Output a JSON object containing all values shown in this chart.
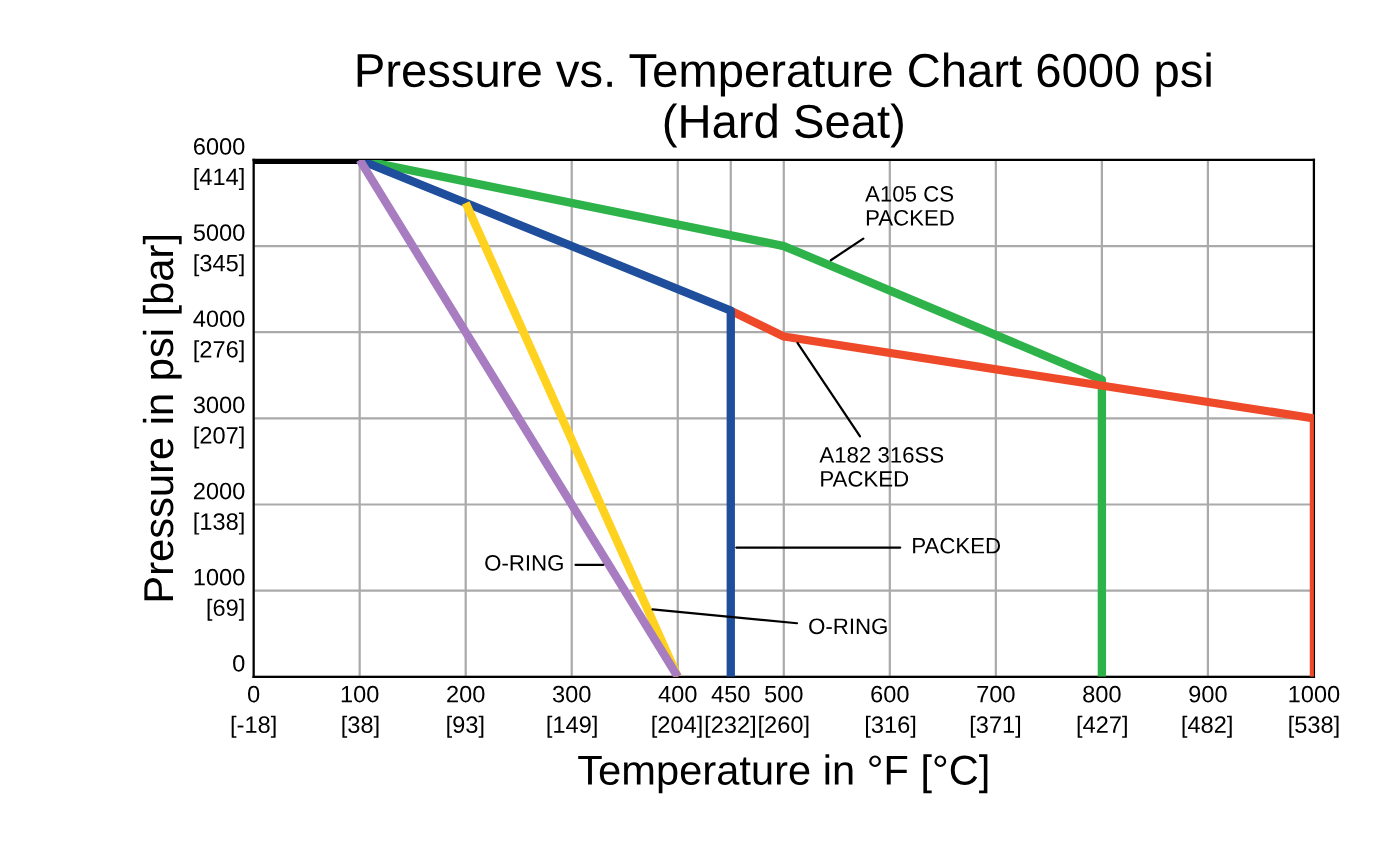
{
  "chart_data": {
    "type": "line",
    "title": "Pressure vs. Temperature Chart 6000 psi\n(Hard Seat)",
    "xlabel": "Temperature in °F [°C]",
    "ylabel": "Pressure in psi [bar]",
    "series": [
      {
        "color": "#000000",
        "x": [
          0,
          100
        ],
        "values": [
          6000,
          6000
        ]
      },
      {
        "color": "#2db34a",
        "x": [
          100,
          500,
          800,
          800
        ],
        "values": [
          6000,
          5000,
          3450,
          0
        ]
      },
      {
        "color": "#ee4a2a",
        "x": [
          450,
          500,
          1000,
          1000
        ],
        "values": [
          4250,
          3950,
          3000,
          0
        ]
      },
      {
        "color": "#1f4e9c",
        "x": [
          100,
          200,
          450,
          450
        ],
        "values": [
          6000,
          5500,
          4250,
          0
        ]
      },
      {
        "color": "#ffd21f",
        "x": [
          200,
          400
        ],
        "values": [
          5500,
          0
        ]
      },
      {
        "color": "#a77cc0",
        "x": [
          100,
          400
        ],
        "values": [
          6000,
          0
        ]
      }
    ],
    "annotations": [
      {
        "text": "A105 CS\nPACKED",
        "x": 540,
        "y": 4800
      },
      {
        "text": "A182 316SS\nPACKED",
        "x": 510,
        "y": 3930
      },
      {
        "text": "PACKED",
        "x": 450,
        "y": 1500
      },
      {
        "text": "O-RING",
        "x": 371,
        "y": 790
      },
      {
        "text": "O-RING",
        "x": 335,
        "y": 1300
      }
    ],
    "xlim": [
      0,
      1000
    ],
    "ylim": [
      0,
      6000
    ],
    "xticks": [
      0,
      100,
      200,
      300,
      400,
      450,
      500,
      600,
      700,
      800,
      900,
      1000
    ],
    "x2lim": [
      -18,
      538
    ],
    "x2ticks": [
      {
        "value": -18,
        "label": "[-18]"
      },
      {
        "value": 38,
        "label": "[38]"
      },
      {
        "value": 93,
        "label": "[93]"
      },
      {
        "value": 149,
        "label": "[149]"
      },
      {
        "value": 204,
        "label": "[204]"
      },
      {
        "value": 232,
        "label": "[232]"
      },
      {
        "value": 260,
        "label": "[260]"
      },
      {
        "value": 316,
        "label": "[316]"
      },
      {
        "value": 371,
        "label": "[371]"
      },
      {
        "value": 427,
        "label": "[427]"
      },
      {
        "value": 482,
        "label": "[482]"
      },
      {
        "value": 538,
        "label": "[538]"
      }
    ],
    "yticks": [
      0,
      1000,
      2000,
      3000,
      4000,
      5000,
      6000
    ],
    "y2lim": [
      0,
      414
    ],
    "y2ticks": [
      {
        "value": 69,
        "label": "[69]"
      },
      {
        "value": 138,
        "label": "[138]"
      },
      {
        "value": 207,
        "label": "[207]"
      },
      {
        "value": 276,
        "label": "[276]"
      },
      {
        "value": 345,
        "label": "[345]"
      },
      {
        "value": 414,
        "label": "[414]"
      }
    ],
    "grid": true,
    "line_style": "solid",
    "marker": "none"
  }
}
